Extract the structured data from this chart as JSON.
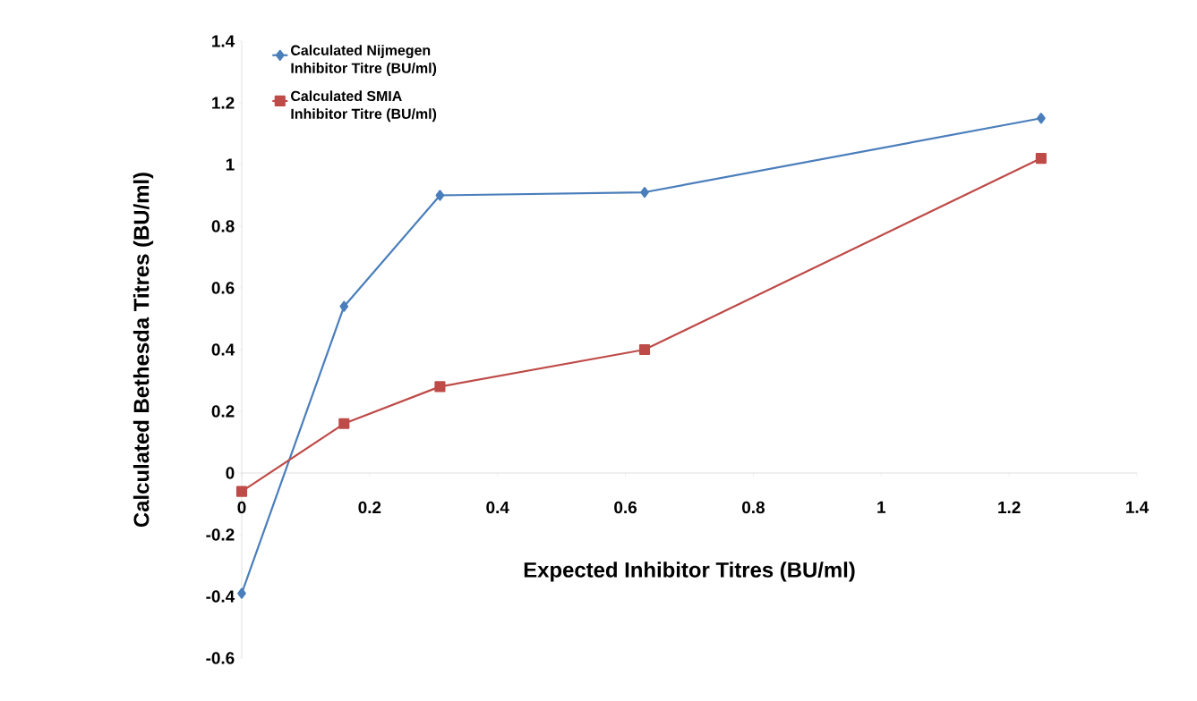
{
  "chart_data": {
    "type": "line",
    "xlabel": "Expected Inhibitor Titres (BU/ml)",
    "ylabel": "Calculated Bethesda Titres (BU/ml)",
    "x": [
      0,
      0.16,
      0.31,
      0.63,
      1.25
    ],
    "series": [
      {
        "name": "Calculated Nijmegen Inhibitor Titre (BU/ml)",
        "color": "#4a7ebb",
        "marker": "diamond",
        "values": [
          -0.39,
          0.54,
          0.9,
          0.91,
          1.15
        ]
      },
      {
        "name": "Calculated SMIA Inhibitor Titre (BU/ml)",
        "color": "#be4b48",
        "marker": "square",
        "values": [
          -0.06,
          0.16,
          0.28,
          0.4,
          1.02
        ]
      }
    ],
    "xlim": [
      0,
      1.4
    ],
    "ylim": [
      -0.6,
      1.4
    ],
    "xticks": [
      0,
      0.2,
      0.4,
      0.6,
      0.8,
      1,
      1.2,
      1.4
    ],
    "yticks": [
      -0.6,
      -0.4,
      -0.2,
      0,
      0.2,
      0.4,
      0.6,
      0.8,
      1,
      1.2,
      1.4
    ],
    "grid": false,
    "legend": "top left",
    "line_style": "solid"
  }
}
